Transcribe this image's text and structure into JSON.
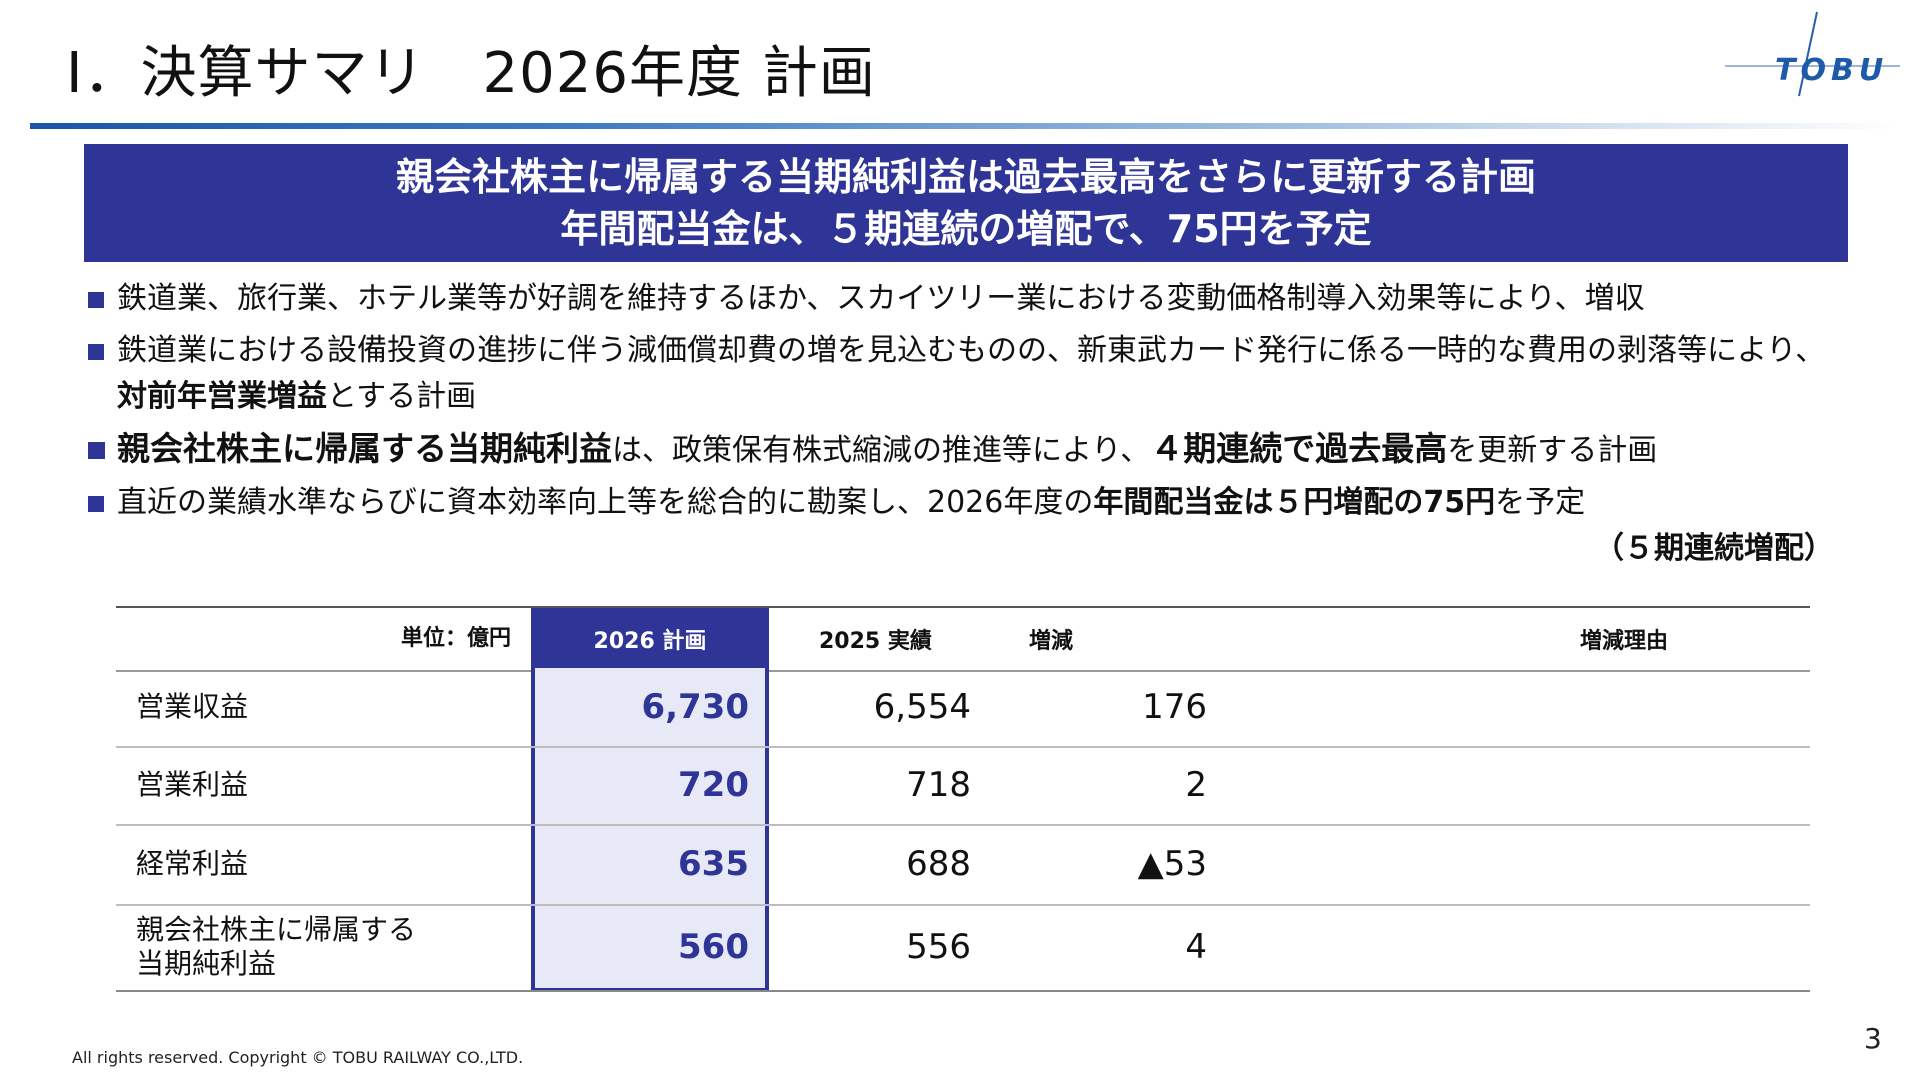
{
  "slide": {
    "title": "Ⅰ．決算サマリ　2026年度 計画",
    "logo_text": "TOBU",
    "page_number": "3",
    "copyright": "All rights reserved. Copyright © TOBU RAILWAY CO.,LTD."
  },
  "banner": {
    "line1": "親会社株主に帰属する当期純利益は過去最高をさらに更新する計画",
    "line2": "年間配当金は、５期連続の増配で、75円を予定"
  },
  "bullets": [
    {
      "text": "鉄道業、旅行業、ホテル業等が好調を維持するほか、スカイツリー業における変動価格制導入効果等により、増収"
    },
    {
      "pre": "鉄道業における設備投資の進捗に伴う減価償却費の増を見込むものの、新東武カード発行に係る一時的な費用の剥落等により、",
      "bold": "対前年営業増益",
      "post": "とする計画"
    },
    {
      "bold1": "親会社株主に帰属する当期純利益",
      "mid": "は、政策保有株式縮減の推進等により、",
      "bold2": "４期連続で過去最高",
      "post": "を更新する計画"
    },
    {
      "pre": "直近の業績水準ならびに資本効率向上等を総合的に勘案し、2026年度の",
      "bold": "年間配当金は５円増配の75円",
      "post": "を予定",
      "note": "（５期連続増配）"
    }
  ],
  "table": {
    "headers": {
      "unit": "単位：億円",
      "plan": "2026 計画",
      "actual": "2025 実績",
      "diff": "増減",
      "reason": "増減理由"
    },
    "rows": [
      {
        "label": "営業収益",
        "plan": "6,730",
        "actual": "6,554",
        "diff": "176",
        "reason": ""
      },
      {
        "label": "営業利益",
        "plan": "720",
        "actual": "718",
        "diff": "2",
        "reason": ""
      },
      {
        "label": "経常利益",
        "plan": "635",
        "actual": "688",
        "diff": "▲53",
        "reason": ""
      },
      {
        "label": "親会社株主に帰属する\n当期純利益",
        "plan": "560",
        "actual": "556",
        "diff": "4",
        "reason": ""
      }
    ]
  },
  "colors": {
    "accent": "#2f3596",
    "plan_bg": "#e8e9f6"
  }
}
